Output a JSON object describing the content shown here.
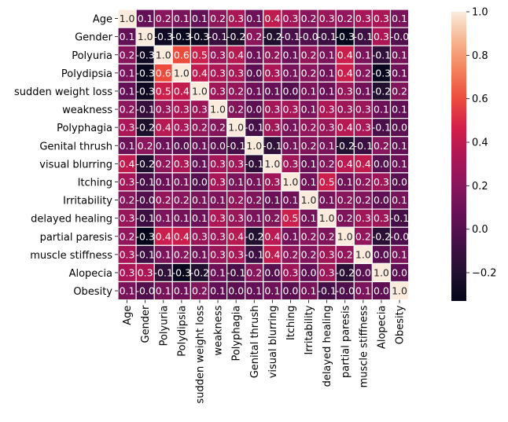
{
  "chart_data": {
    "type": "heatmap",
    "title": "",
    "xlabel": "",
    "ylabel": "",
    "labels": [
      "Age",
      "Gender",
      "Polyuria",
      "Polydipsia",
      "sudden weight loss",
      "weakness",
      "Polyphagia",
      "Genital thrush",
      "visual blurring",
      "Itching",
      "Irritability",
      "delayed healing",
      "partial paresis",
      "muscle stiffness",
      "Alopecia",
      "Obesity"
    ],
    "values": [
      [
        1.0,
        0.06,
        0.2,
        0.14,
        0.06,
        0.22,
        0.32,
        0.09,
        0.4,
        0.3,
        0.2,
        0.26,
        0.23,
        0.31,
        0.32,
        0.14
      ],
      [
        0.06,
        1.0,
        -0.27,
        -0.31,
        -0.28,
        -0.12,
        -0.22,
        0.21,
        -0.21,
        -0.05,
        -0.01,
        -0.1,
        -0.33,
        -0.09,
        0.33,
        -0.01
      ],
      [
        0.2,
        -0.27,
        1.0,
        0.6,
        0.45,
        0.26,
        0.37,
        0.09,
        0.24,
        0.09,
        0.24,
        0.15,
        0.44,
        0.15,
        -0.14,
        0.13
      ],
      [
        0.14,
        -0.31,
        0.6,
        1.0,
        0.41,
        0.33,
        0.32,
        0.03,
        0.33,
        0.13,
        0.2,
        0.12,
        0.44,
        0.2,
        -0.31,
        0.1
      ],
      [
        0.06,
        -0.28,
        0.45,
        0.41,
        1.0,
        0.28,
        0.24,
        0.09,
        0.07,
        -0.0,
        0.14,
        0.09,
        0.26,
        0.11,
        -0.2,
        0.17
      ],
      [
        0.22,
        -0.12,
        0.26,
        0.33,
        0.28,
        1.0,
        0.18,
        0.03,
        0.3,
        0.31,
        0.15,
        0.34,
        0.27,
        0.26,
        0.09,
        0.05
      ],
      [
        0.32,
        -0.22,
        0.37,
        0.32,
        0.24,
        0.18,
        1.0,
        -0.06,
        0.29,
        0.14,
        0.24,
        0.26,
        0.37,
        0.32,
        -0.05,
        0.03
      ],
      [
        0.09,
        0.21,
        0.09,
        0.03,
        0.09,
        0.03,
        -0.06,
        1.0,
        -0.15,
        0.13,
        0.16,
        0.14,
        -0.2,
        -0.1,
        0.2,
        0.06
      ],
      [
        0.4,
        -0.21,
        0.24,
        0.33,
        0.07,
        0.3,
        0.29,
        -0.15,
        1.0,
        0.29,
        0.08,
        0.18,
        0.38,
        0.41,
        0.01,
        0.1
      ],
      [
        0.3,
        -0.05,
        0.09,
        0.13,
        -0.0,
        0.31,
        0.14,
        0.13,
        0.29,
        1.0,
        0.11,
        0.45,
        0.12,
        0.22,
        0.27,
        0.02
      ],
      [
        0.2,
        -0.01,
        0.24,
        0.2,
        0.14,
        0.15,
        0.24,
        0.16,
        0.08,
        0.11,
        1.0,
        0.13,
        0.2,
        0.17,
        0.04,
        0.13
      ],
      [
        0.26,
        -0.1,
        0.15,
        0.12,
        0.09,
        0.34,
        0.26,
        0.14,
        0.18,
        0.45,
        0.13,
        1.0,
        0.16,
        0.29,
        0.27,
        -0.07
      ],
      [
        0.23,
        -0.33,
        0.44,
        0.44,
        0.26,
        0.27,
        0.37,
        -0.2,
        0.38,
        0.12,
        0.2,
        0.16,
        1.0,
        0.24,
        -0.17,
        -0.02
      ],
      [
        0.31,
        -0.09,
        0.15,
        0.2,
        0.11,
        0.26,
        0.32,
        -0.1,
        0.41,
        0.22,
        0.17,
        0.29,
        0.24,
        1.0,
        0.03,
        0.15
      ],
      [
        0.32,
        0.33,
        -0.14,
        -0.31,
        -0.2,
        0.09,
        -0.05,
        0.2,
        0.01,
        0.27,
        0.04,
        0.27,
        -0.17,
        0.03,
        1.0,
        0.04
      ],
      [
        0.14,
        -0.01,
        0.13,
        0.1,
        0.17,
        0.05,
        0.03,
        0.06,
        0.1,
        0.02,
        0.13,
        -0.07,
        -0.02,
        0.15,
        0.04,
        1.0
      ]
    ],
    "vmin": -0.33,
    "vmax": 1.0,
    "colormap": "rocket",
    "colorbar_ticks": [
      1.0,
      0.8,
      0.6,
      0.4,
      0.2,
      0.0,
      -0.2
    ],
    "annotation_format": "1 decimal"
  }
}
